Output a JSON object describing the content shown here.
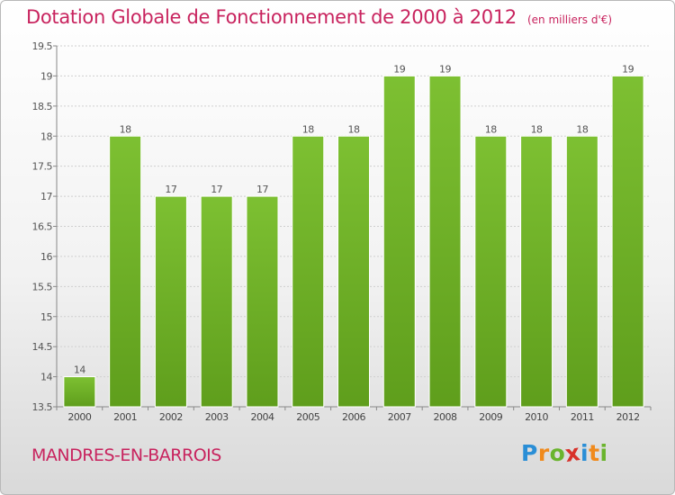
{
  "title": "Dotation Globale de Fonctionnement de 2000 à 2012",
  "unit_note": "(en milliers d'€)",
  "commune": "MANDRES-EN-BARROIS",
  "logo": {
    "letters": [
      "P",
      "r",
      "o",
      "x",
      "i",
      "t",
      "i"
    ],
    "colors": [
      "#2a8ed6",
      "#f08a1c",
      "#6ab42d",
      "#d8312a",
      "#2a8ed6",
      "#f08a1c",
      "#6ab42d"
    ]
  },
  "chart_data": {
    "type": "bar",
    "categories": [
      "2000",
      "2001",
      "2002",
      "2003",
      "2004",
      "2005",
      "2006",
      "2007",
      "2008",
      "2009",
      "2010",
      "2011",
      "2012"
    ],
    "values": [
      14,
      18,
      17,
      17,
      17,
      18,
      18,
      19,
      19,
      18,
      18,
      18,
      19
    ],
    "data_labels": [
      "14",
      "18",
      "17",
      "17",
      "17",
      "18",
      "18",
      "19",
      "19",
      "18",
      "18",
      "18",
      "19"
    ],
    "yticks": [
      "13.5",
      "14",
      "14.5",
      "15",
      "15.5",
      "16",
      "16.5",
      "17",
      "17.5",
      "18",
      "18.5",
      "19",
      "19.5"
    ],
    "ylim": [
      13.5,
      19.5
    ],
    "grid": true,
    "bar_color": "#7dc032",
    "bar_color_dark": "#5f9e1c",
    "title_color": "#c8235e"
  }
}
